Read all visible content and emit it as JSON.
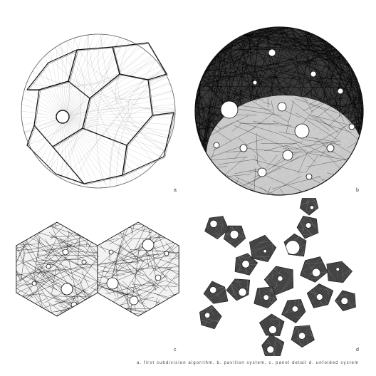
{
  "figure": {
    "caption": "a. first subdivision algorithm, b. pavilion system, c. panel detail d. unfolded system",
    "panels": [
      {
        "id": "a",
        "letter": "a"
      },
      {
        "id": "b",
        "letter": "b"
      },
      {
        "id": "c",
        "letter": "c"
      },
      {
        "id": "d",
        "letter": "d"
      }
    ]
  },
  "colors": {
    "background": "#ffffff",
    "ink": "#111111",
    "thread": "#000000",
    "light_thread": "#9a9a9a",
    "panel_fill": "#f2f2f2"
  }
}
